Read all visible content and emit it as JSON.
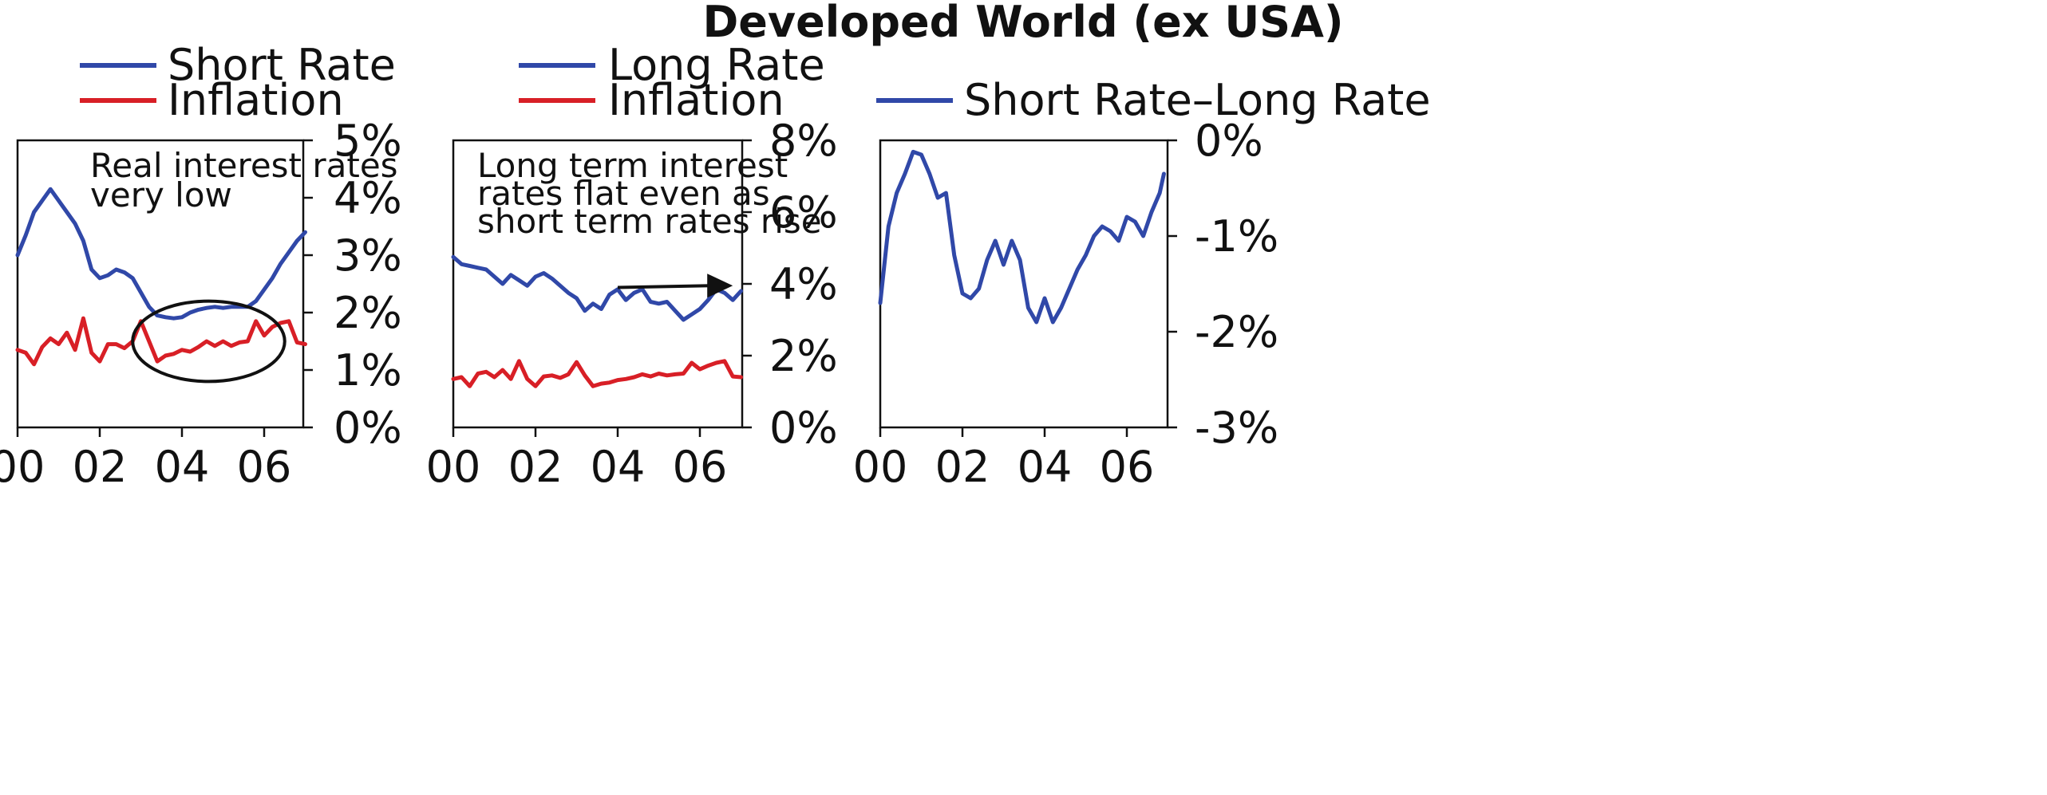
{
  "colors": {
    "blue": "#3048a8",
    "red": "#d81f26",
    "ink": "#111111"
  },
  "chart_data": [
    {
      "type": "line",
      "title": "Developed World (ex USA)",
      "x_tick_labels": [
        "00",
        "02",
        "04",
        "06"
      ],
      "xlim": [
        2000,
        2007.1
      ],
      "ylim": [
        0,
        5
      ],
      "y_tick_labels": [
        "0%",
        "1%",
        "2%",
        "3%",
        "4%",
        "5%"
      ],
      "y_axis_side": "right",
      "legend": "top-left",
      "annotation": "Real interest rates\nvery low",
      "highlight_ellipse": {
        "cx": 2004.65,
        "cy": 1.5,
        "rx": 1.85,
        "ry": 0.7
      },
      "series": [
        {
          "name": "Short Rate",
          "color": "#3048a8",
          "x": [
            2000.0,
            2000.2,
            2000.4,
            2000.6,
            2000.8,
            2001.0,
            2001.2,
            2001.4,
            2001.6,
            2001.8,
            2002.0,
            2002.2,
            2002.4,
            2002.6,
            2002.8,
            2003.0,
            2003.2,
            2003.4,
            2003.6,
            2003.8,
            2004.0,
            2004.2,
            2004.4,
            2004.6,
            2004.8,
            2005.0,
            2005.2,
            2005.4,
            2005.6,
            2005.8,
            2006.0,
            2006.2,
            2006.4,
            2006.6,
            2006.8,
            2007.0
          ],
          "values": [
            3.0,
            3.35,
            3.75,
            3.95,
            4.15,
            3.95,
            3.75,
            3.55,
            3.25,
            2.75,
            2.6,
            2.65,
            2.75,
            2.7,
            2.6,
            2.35,
            2.1,
            1.95,
            1.92,
            1.9,
            1.92,
            2.0,
            2.05,
            2.08,
            2.1,
            2.08,
            2.1,
            2.1,
            2.1,
            2.2,
            2.4,
            2.6,
            2.85,
            3.05,
            3.25,
            3.4
          ]
        },
        {
          "name": "Inflation",
          "color": "#d81f26",
          "x": [
            2000.0,
            2000.2,
            2000.4,
            2000.6,
            2000.8,
            2001.0,
            2001.2,
            2001.4,
            2001.6,
            2001.8,
            2002.0,
            2002.2,
            2002.4,
            2002.6,
            2002.8,
            2003.0,
            2003.2,
            2003.4,
            2003.6,
            2003.8,
            2004.0,
            2004.2,
            2004.4,
            2004.6,
            2004.8,
            2005.0,
            2005.2,
            2005.4,
            2005.6,
            2005.8,
            2006.0,
            2006.2,
            2006.4,
            2006.6,
            2006.8,
            2007.0
          ],
          "values": [
            1.35,
            1.3,
            1.1,
            1.4,
            1.55,
            1.45,
            1.65,
            1.35,
            1.9,
            1.3,
            1.15,
            1.45,
            1.45,
            1.38,
            1.5,
            1.85,
            1.5,
            1.15,
            1.25,
            1.28,
            1.35,
            1.32,
            1.4,
            1.5,
            1.42,
            1.5,
            1.42,
            1.48,
            1.5,
            1.85,
            1.6,
            1.75,
            1.82,
            1.85,
            1.48,
            1.45
          ]
        }
      ]
    },
    {
      "type": "line",
      "x_tick_labels": [
        "00",
        "02",
        "04",
        "06"
      ],
      "xlim": [
        2000,
        2007.1
      ],
      "ylim": [
        0,
        8
      ],
      "y_tick_labels": [
        "0%",
        "2%",
        "4%",
        "6%",
        "8%"
      ],
      "y_axis_side": "right",
      "legend": "top-left",
      "annotation": "Long term interest\nrates flat even as\nshort term rates rise",
      "arrow": {
        "from": [
          2004.0,
          3.9
        ],
        "to": [
          2006.8,
          3.95
        ]
      },
      "series": [
        {
          "name": "Long Rate",
          "color": "#3048a8",
          "x": [
            2000.0,
            2000.2,
            2000.4,
            2000.6,
            2000.8,
            2001.0,
            2001.2,
            2001.4,
            2001.6,
            2001.8,
            2002.0,
            2002.2,
            2002.4,
            2002.6,
            2002.8,
            2003.0,
            2003.2,
            2003.4,
            2003.6,
            2003.8,
            2004.0,
            2004.2,
            2004.4,
            2004.6,
            2004.8,
            2005.0,
            2005.2,
            2005.4,
            2005.6,
            2005.8,
            2006.0,
            2006.2,
            2006.4,
            2006.6,
            2006.8,
            2007.0
          ],
          "values": [
            4.75,
            4.55,
            4.5,
            4.45,
            4.4,
            4.2,
            4.0,
            4.25,
            4.1,
            3.95,
            4.2,
            4.3,
            4.15,
            3.95,
            3.75,
            3.6,
            3.25,
            3.45,
            3.3,
            3.7,
            3.85,
            3.55,
            3.75,
            3.85,
            3.5,
            3.45,
            3.5,
            3.25,
            3.0,
            3.15,
            3.3,
            3.55,
            3.85,
            3.75,
            3.55,
            3.8
          ]
        },
        {
          "name": "Inflation",
          "color": "#d81f26",
          "x": [
            2000.0,
            2000.2,
            2000.4,
            2000.6,
            2000.8,
            2001.0,
            2001.2,
            2001.4,
            2001.6,
            2001.8,
            2002.0,
            2002.2,
            2002.4,
            2002.6,
            2002.8,
            2003.0,
            2003.2,
            2003.4,
            2003.6,
            2003.8,
            2004.0,
            2004.2,
            2004.4,
            2004.6,
            2004.8,
            2005.0,
            2005.2,
            2005.4,
            2005.6,
            2005.8,
            2006.0,
            2006.2,
            2006.4,
            2006.6,
            2006.8,
            2007.0
          ],
          "values": [
            1.35,
            1.4,
            1.15,
            1.5,
            1.55,
            1.4,
            1.6,
            1.35,
            1.85,
            1.35,
            1.15,
            1.42,
            1.45,
            1.38,
            1.48,
            1.82,
            1.45,
            1.15,
            1.22,
            1.25,
            1.32,
            1.35,
            1.4,
            1.48,
            1.42,
            1.5,
            1.45,
            1.48,
            1.5,
            1.8,
            1.62,
            1.72,
            1.8,
            1.85,
            1.42,
            1.4
          ]
        }
      ]
    },
    {
      "type": "line",
      "x_tick_labels": [
        "00",
        "02",
        "04",
        "06"
      ],
      "xlim": [
        2000,
        2007.1
      ],
      "ylim": [
        -3,
        0
      ],
      "y_tick_labels": [
        "-3%",
        "-2%",
        "-1%",
        "0%"
      ],
      "y_axis_side": "right",
      "legend": "top",
      "series": [
        {
          "name": "Short Rate–Long Rate",
          "color": "#3048a8",
          "x": [
            2000.0,
            2000.2,
            2000.4,
            2000.6,
            2000.8,
            2001.0,
            2001.2,
            2001.4,
            2001.6,
            2001.8,
            2002.0,
            2002.2,
            2002.4,
            2002.6,
            2002.8,
            2003.0,
            2003.2,
            2003.4,
            2003.6,
            2003.8,
            2004.0,
            2004.2,
            2004.4,
            2004.6,
            2004.8,
            2005.0,
            2005.2,
            2005.4,
            2005.6,
            2005.8,
            2006.0,
            2006.2,
            2006.4,
            2006.6,
            2006.8,
            2006.9
          ],
          "values": [
            -1.7,
            -0.9,
            -0.55,
            -0.35,
            -0.12,
            -0.15,
            -0.35,
            -0.6,
            -0.55,
            -1.2,
            -1.6,
            -1.65,
            -1.55,
            -1.25,
            -1.05,
            -1.3,
            -1.05,
            -1.25,
            -1.75,
            -1.9,
            -1.65,
            -1.9,
            -1.75,
            -1.55,
            -1.35,
            -1.2,
            -1.0,
            -0.9,
            -0.95,
            -1.05,
            -0.8,
            -0.85,
            -1.0,
            -0.75,
            -0.55,
            -0.35
          ]
        }
      ]
    }
  ]
}
